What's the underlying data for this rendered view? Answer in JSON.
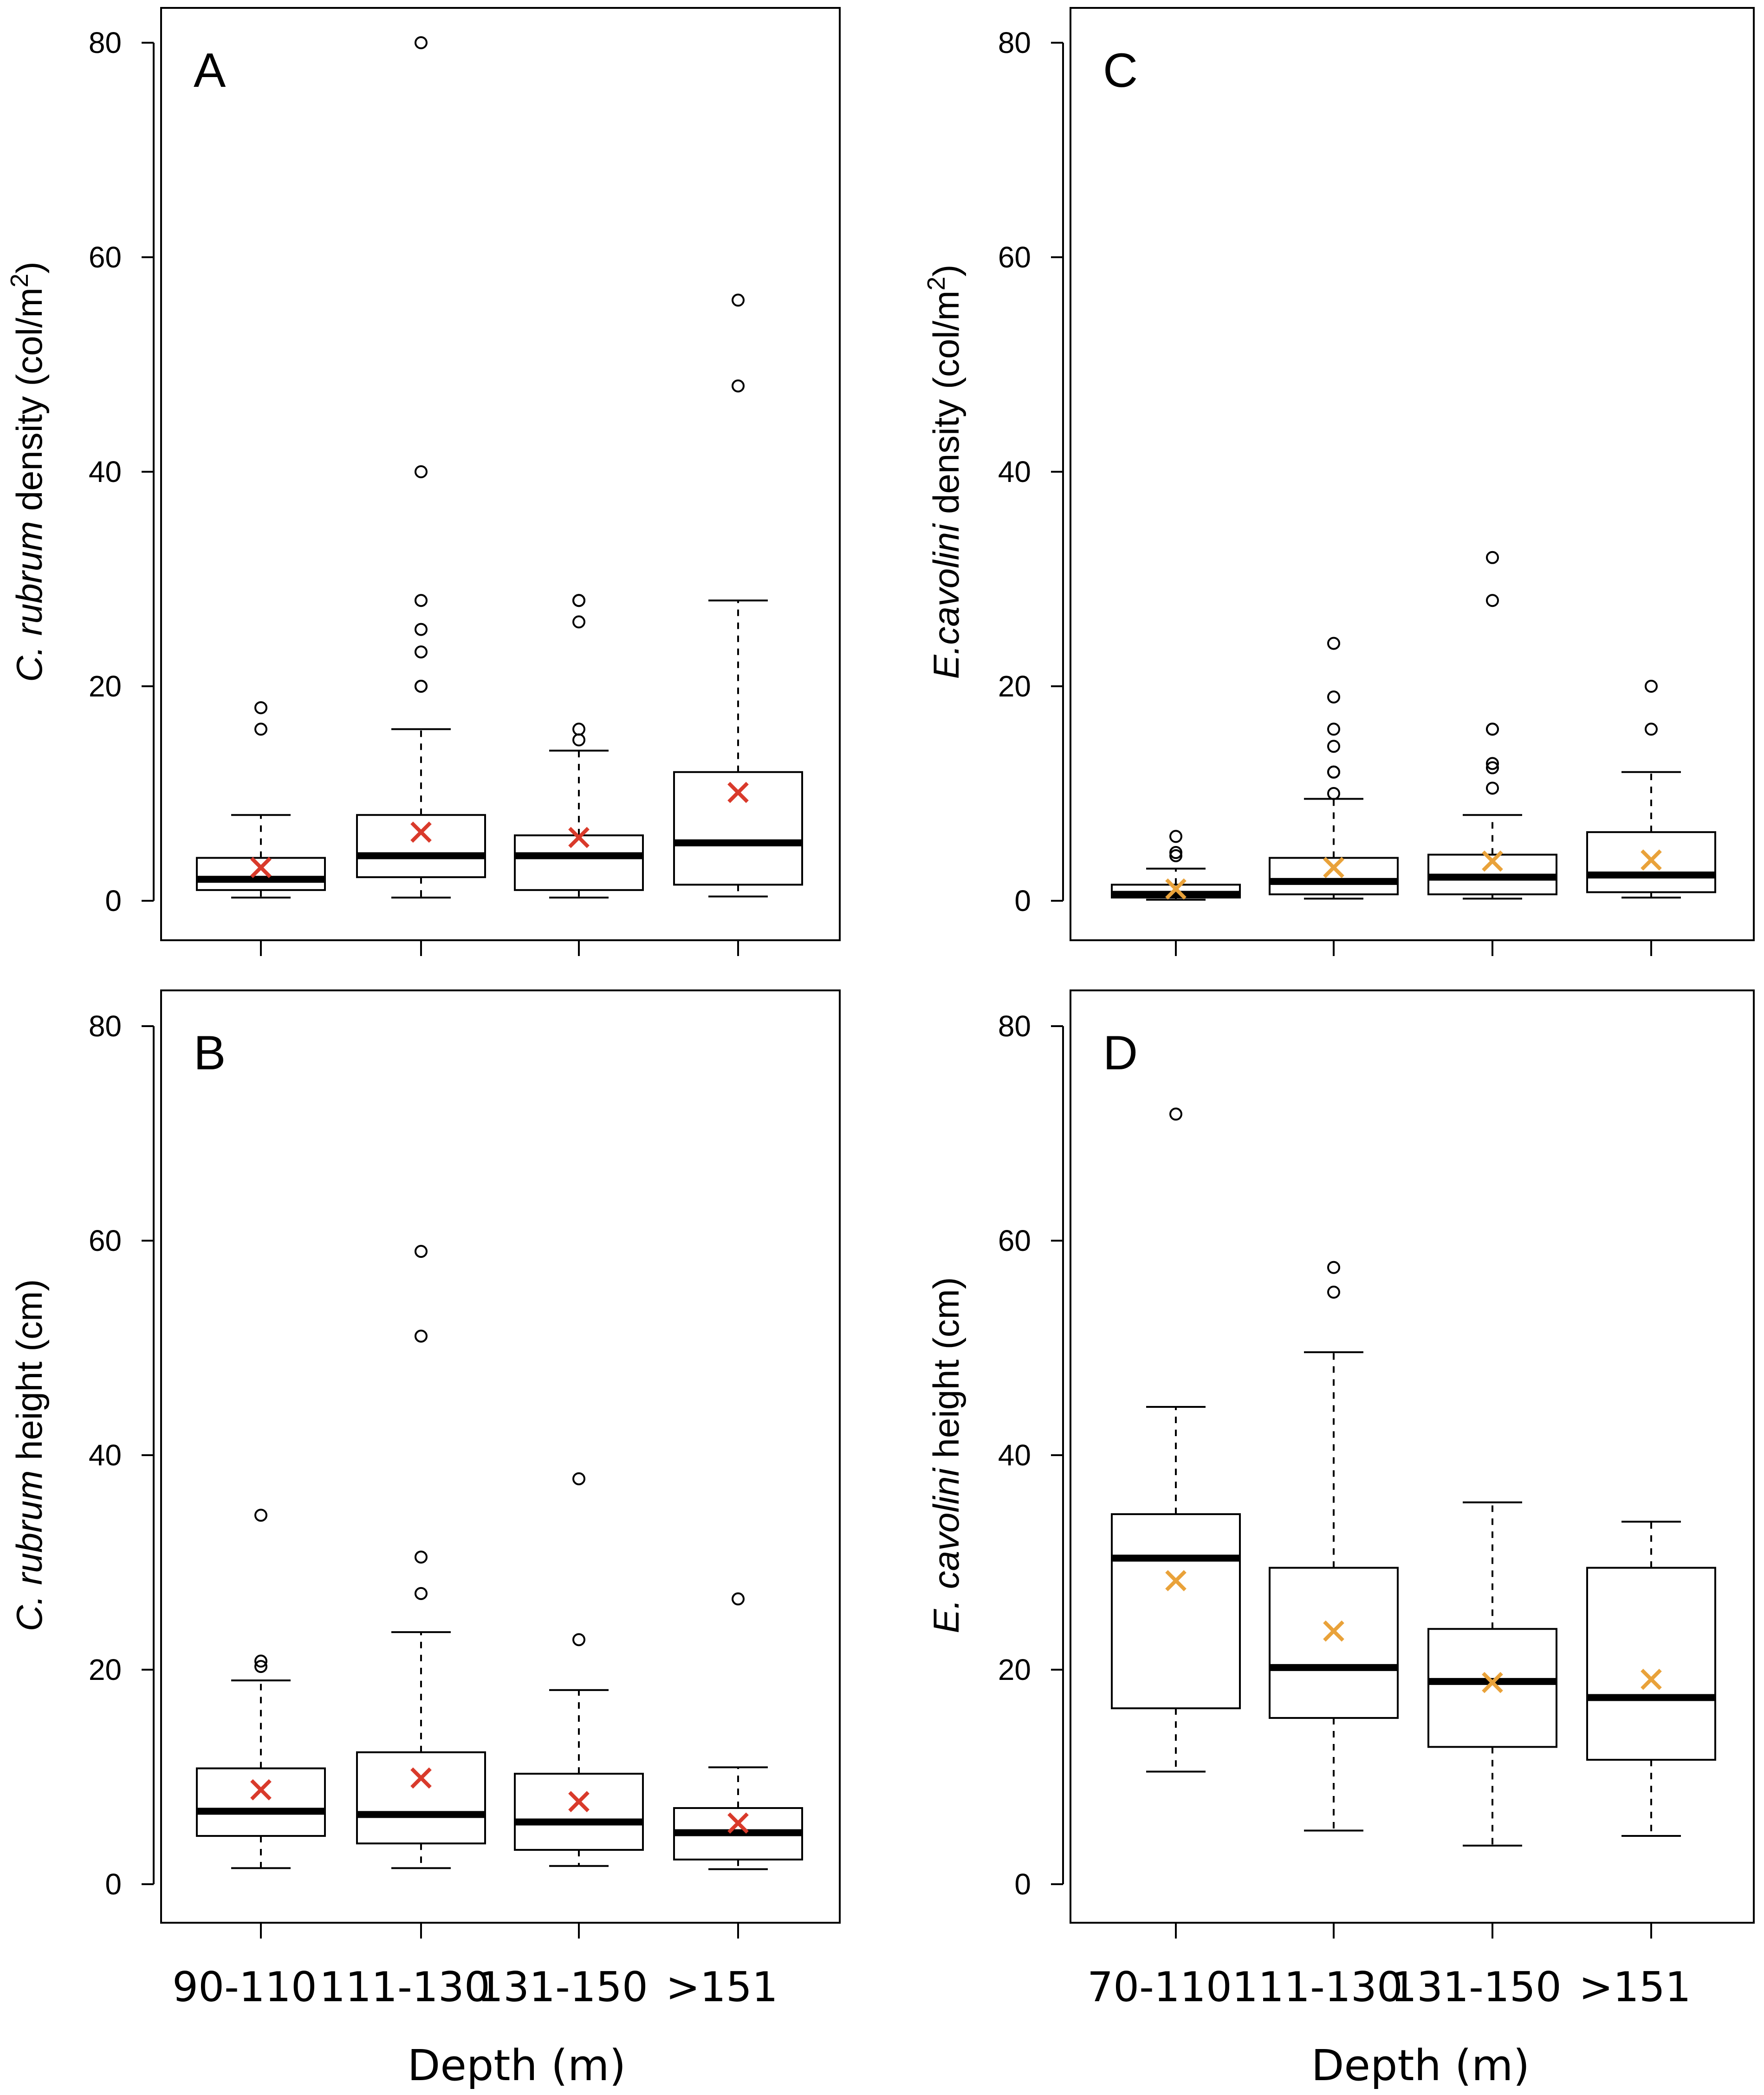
{
  "chart_data": [
    {
      "panel": "A",
      "type": "box",
      "ylabel_italic": "C. rubrum",
      "ylabel_rest": " density (col/m",
      "ylabel_sup": "2",
      "ylabel_end": ")",
      "ylim": [
        0,
        80
      ],
      "yticks": [
        "0",
        "20",
        "40",
        "60",
        "80"
      ],
      "categories": [
        "90-110",
        "111-130",
        "131-150",
        ">151"
      ],
      "mean_color": "#d93a2b",
      "boxes": [
        {
          "min": 0.3,
          "q1": 1.0,
          "median": 2.0,
          "q3": 4.0,
          "max": 8.0,
          "mean": 3.1,
          "outliers": [
            16,
            18
          ]
        },
        {
          "min": 0.3,
          "q1": 2.2,
          "median": 4.2,
          "q3": 8.0,
          "max": 16.0,
          "mean": 6.4,
          "outliers": [
            20,
            20,
            23.2,
            25.3,
            28,
            40,
            80
          ]
        },
        {
          "min": 0.3,
          "q1": 1.0,
          "median": 4.2,
          "q3": 6.1,
          "max": 14.0,
          "mean": 5.9,
          "outliers": [
            15,
            16,
            26,
            28,
            28
          ]
        },
        {
          "min": 0.4,
          "q1": 1.5,
          "median": 5.4,
          "q3": 12.0,
          "max": 28.0,
          "mean": 10.1,
          "outliers": [
            48,
            56
          ]
        }
      ]
    },
    {
      "panel": "B",
      "type": "box",
      "ylabel_italic": "C. rubrum",
      "ylabel_rest": " height (cm)",
      "ylabel_sup": "",
      "ylabel_end": "",
      "ylim": [
        0,
        80
      ],
      "yticks": [
        "0",
        "20",
        "40",
        "60",
        "80"
      ],
      "categories": [
        "90-110",
        "111-130",
        "131-150",
        ">151"
      ],
      "xlabel": "Depth (m)",
      "mean_color": "#d93a2b",
      "boxes": [
        {
          "min": 1.5,
          "q1": 4.5,
          "median": 6.8,
          "q3": 10.8,
          "max": 19.0,
          "mean": 8.8,
          "outliers": [
            20.3,
            20.8,
            34.4
          ]
        },
        {
          "min": 1.5,
          "q1": 3.8,
          "median": 6.5,
          "q3": 12.3,
          "max": 23.5,
          "mean": 9.9,
          "outliers": [
            27.1,
            30.5,
            51.1,
            59.0
          ]
        },
        {
          "min": 1.7,
          "q1": 3.2,
          "median": 5.8,
          "q3": 10.3,
          "max": 18.1,
          "mean": 7.7,
          "outliers": [
            22.8,
            37.8
          ]
        },
        {
          "min": 1.4,
          "q1": 2.3,
          "median": 4.8,
          "q3": 7.1,
          "max": 10.9,
          "mean": 5.7,
          "outliers": [
            26.6
          ]
        }
      ]
    },
    {
      "panel": "C",
      "type": "box",
      "ylabel_italic": "E.cavolini",
      "ylabel_rest": " density (col/m",
      "ylabel_sup": "2",
      "ylabel_end": ")",
      "ylim": [
        0,
        80
      ],
      "yticks": [
        "0",
        "20",
        "40",
        "60",
        "80"
      ],
      "categories": [
        "70-110",
        "111-130",
        "131-150",
        ">151"
      ],
      "mean_color": "#e9a23a",
      "boxes": [
        {
          "min": 0.1,
          "q1": 0.3,
          "median": 0.6,
          "q3": 1.5,
          "max": 3.0,
          "mean": 1.1,
          "outliers": [
            4.2,
            4.5,
            6.0
          ]
        },
        {
          "min": 0.2,
          "q1": 0.6,
          "median": 1.8,
          "q3": 4.0,
          "max": 9.5,
          "mean": 3.1,
          "outliers": [
            10.0,
            12.0,
            12.0,
            14.4,
            16.0,
            19.0,
            24.0
          ]
        },
        {
          "min": 0.2,
          "q1": 0.6,
          "median": 2.2,
          "q3": 4.3,
          "max": 8.0,
          "mean": 3.7,
          "outliers": [
            10.5,
            12.4,
            12.8,
            16.0,
            16.0,
            28.0,
            32.0
          ]
        },
        {
          "min": 0.3,
          "q1": 0.8,
          "median": 2.4,
          "q3": 6.4,
          "max": 12.0,
          "mean": 3.8,
          "outliers": [
            16.0,
            20.0
          ]
        }
      ]
    },
    {
      "panel": "D",
      "type": "box",
      "ylabel_italic": "E. cavolini",
      "ylabel_rest": " height (cm)",
      "ylabel_sup": "",
      "ylabel_end": "",
      "ylim": [
        0,
        80
      ],
      "yticks": [
        "0",
        "20",
        "40",
        "60",
        "80"
      ],
      "categories": [
        "70-110",
        "111-130",
        "131-150",
        ">151"
      ],
      "xlabel": "Depth (m)",
      "mean_color": "#e9a23a",
      "boxes": [
        {
          "min": 10.5,
          "q1": 16.4,
          "median": 30.4,
          "q3": 34.5,
          "max": 44.5,
          "mean": 28.3,
          "outliers": [
            71.8
          ]
        },
        {
          "min": 5.0,
          "q1": 15.5,
          "median": 20.2,
          "q3": 29.5,
          "max": 49.6,
          "mean": 23.6,
          "outliers": [
            55.2,
            57.5
          ]
        },
        {
          "min": 3.6,
          "q1": 12.8,
          "median": 18.9,
          "q3": 23.8,
          "max": 35.6,
          "mean": 18.8,
          "outliers": []
        },
        {
          "min": 4.5,
          "q1": 11.6,
          "median": 17.4,
          "q3": 29.5,
          "max": 33.8,
          "mean": 19.1,
          "outliers": []
        }
      ]
    }
  ]
}
